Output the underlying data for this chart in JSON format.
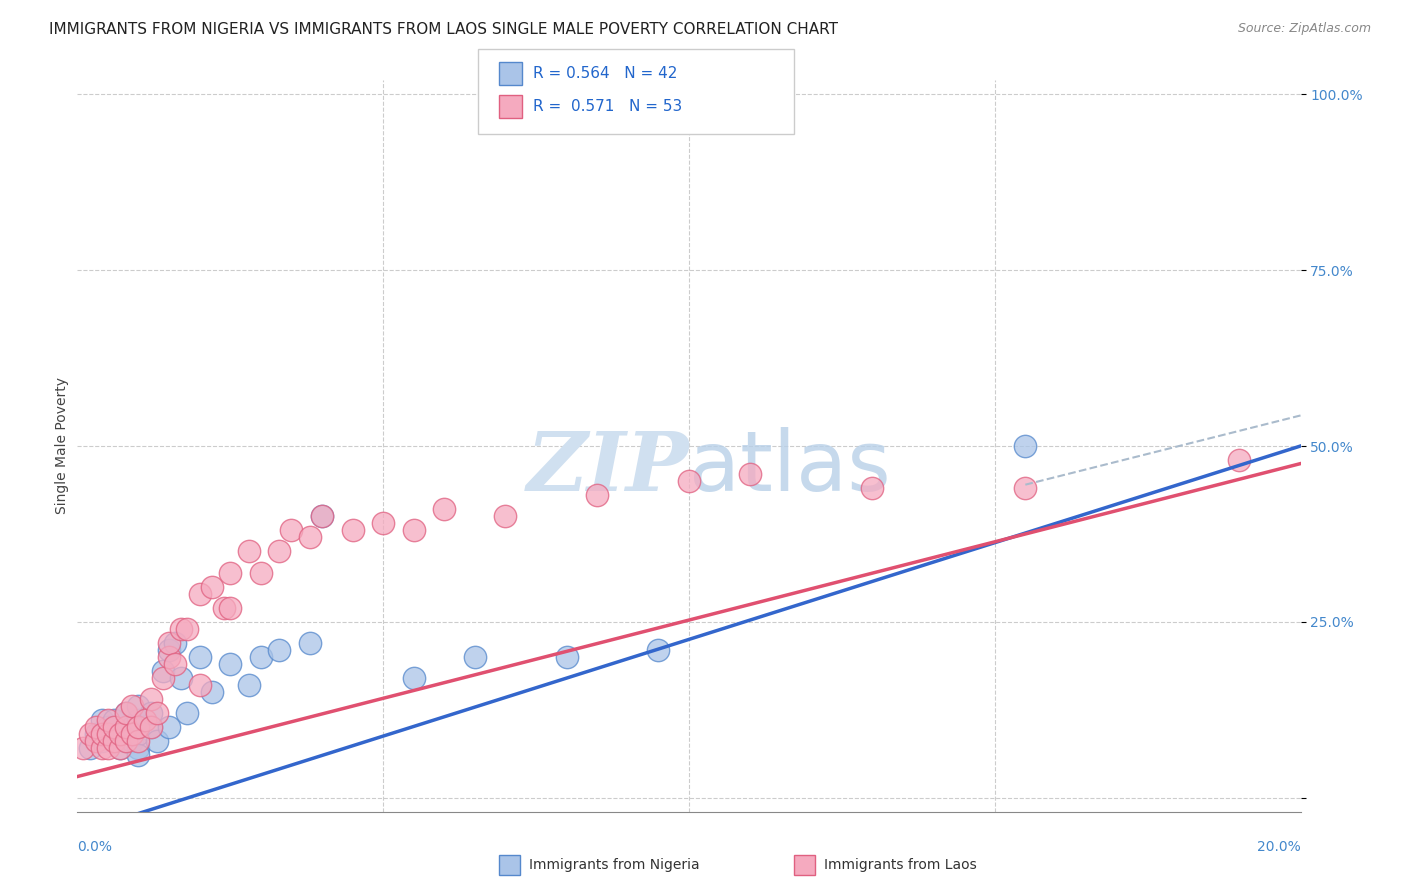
{
  "title": "IMMIGRANTS FROM NIGERIA VS IMMIGRANTS FROM LAOS SINGLE MALE POVERTY CORRELATION CHART",
  "source": "Source: ZipAtlas.com",
  "ylabel": "Single Male Poverty",
  "nigeria_R": 0.564,
  "nigeria_N": 42,
  "laos_R": 0.571,
  "laos_N": 53,
  "nigeria_color": "#aac4e8",
  "laos_color": "#f5aabf",
  "nigeria_edge_color": "#5588cc",
  "laos_edge_color": "#e06080",
  "nigeria_line_color": "#3366cc",
  "laos_line_color": "#e05070",
  "dashed_color": "#aabbcc",
  "watermark_color": "#d0e0f0",
  "background_color": "#ffffff",
  "grid_color": "#cccccc",
  "xlim": [
    0.0,
    0.2
  ],
  "ylim": [
    0.0,
    1.0
  ],
  "yticks": [
    0.0,
    0.25,
    0.5,
    0.75,
    1.0
  ],
  "ytick_labels": [
    "",
    "25.0%",
    "50.0%",
    "75.0%",
    "100.0%"
  ],
  "nigeria_line": [
    0.0,
    -0.05,
    0.2,
    0.5
  ],
  "laos_line": [
    0.0,
    0.03,
    0.2,
    0.475
  ],
  "dashed_line": [
    0.155,
    0.445,
    0.235,
    0.62
  ],
  "nigeria_scatter_x": [
    0.002,
    0.003,
    0.004,
    0.004,
    0.005,
    0.005,
    0.006,
    0.006,
    0.007,
    0.007,
    0.008,
    0.008,
    0.008,
    0.009,
    0.009,
    0.01,
    0.01,
    0.01,
    0.01,
    0.01,
    0.012,
    0.012,
    0.013,
    0.014,
    0.015,
    0.015,
    0.016,
    0.017,
    0.018,
    0.02,
    0.022,
    0.025,
    0.028,
    0.03,
    0.033,
    0.038,
    0.04,
    0.055,
    0.065,
    0.08,
    0.095,
    0.155
  ],
  "nigeria_scatter_y": [
    0.07,
    0.09,
    0.08,
    0.11,
    0.09,
    0.1,
    0.08,
    0.11,
    0.07,
    0.09,
    0.08,
    0.1,
    0.12,
    0.08,
    0.1,
    0.07,
    0.09,
    0.11,
    0.13,
    0.06,
    0.1,
    0.12,
    0.08,
    0.18,
    0.1,
    0.21,
    0.22,
    0.17,
    0.12,
    0.2,
    0.15,
    0.19,
    0.16,
    0.2,
    0.21,
    0.22,
    0.4,
    0.17,
    0.2,
    0.2,
    0.21,
    0.5
  ],
  "laos_scatter_x": [
    0.001,
    0.002,
    0.003,
    0.003,
    0.004,
    0.004,
    0.005,
    0.005,
    0.005,
    0.006,
    0.006,
    0.007,
    0.007,
    0.008,
    0.008,
    0.008,
    0.009,
    0.009,
    0.01,
    0.01,
    0.011,
    0.012,
    0.012,
    0.013,
    0.014,
    0.015,
    0.015,
    0.016,
    0.017,
    0.018,
    0.02,
    0.02,
    0.022,
    0.024,
    0.025,
    0.025,
    0.028,
    0.03,
    0.033,
    0.035,
    0.038,
    0.04,
    0.045,
    0.05,
    0.055,
    0.06,
    0.07,
    0.085,
    0.1,
    0.11,
    0.13,
    0.155,
    0.19
  ],
  "laos_scatter_y": [
    0.07,
    0.09,
    0.08,
    0.1,
    0.07,
    0.09,
    0.07,
    0.09,
    0.11,
    0.08,
    0.1,
    0.07,
    0.09,
    0.08,
    0.1,
    0.12,
    0.09,
    0.13,
    0.08,
    0.1,
    0.11,
    0.1,
    0.14,
    0.12,
    0.17,
    0.2,
    0.22,
    0.19,
    0.24,
    0.24,
    0.16,
    0.29,
    0.3,
    0.27,
    0.32,
    0.27,
    0.35,
    0.32,
    0.35,
    0.38,
    0.37,
    0.4,
    0.38,
    0.39,
    0.38,
    0.41,
    0.4,
    0.43,
    0.45,
    0.46,
    0.44,
    0.44,
    0.48
  ],
  "title_fontsize": 11,
  "source_fontsize": 9,
  "tick_fontsize": 10,
  "legend_fontsize": 11,
  "ylabel_fontsize": 10
}
